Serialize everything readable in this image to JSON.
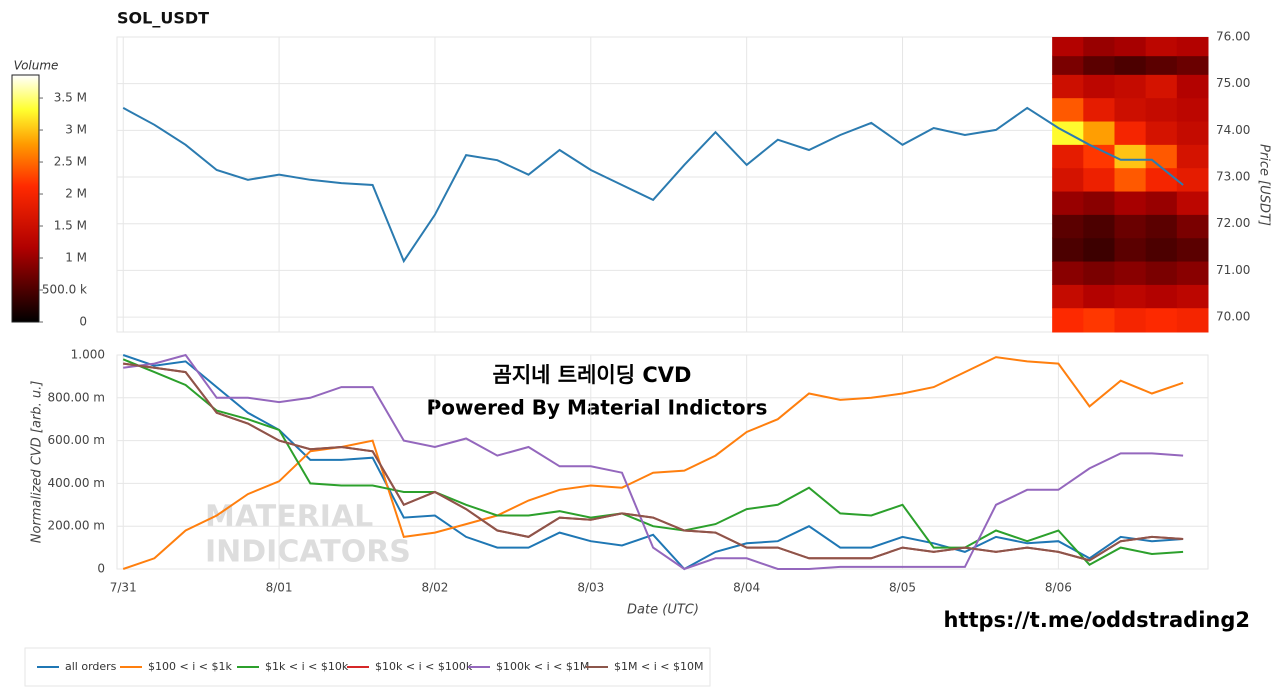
{
  "title": "SOL_USDT",
  "overlay": {
    "heading": "곰지네 트레이딩 CVD",
    "subheading": "Powered By Material Indictors",
    "link": "https://t.me/oddstrading2",
    "watermark": [
      "MATERIAL",
      "INDICATORS"
    ]
  },
  "chart_data": [
    {
      "type": "line",
      "y_label": "Price [USDT]",
      "y_axis_position": "right",
      "grid": true,
      "xlim": [
        -0.04,
        6.96
      ],
      "xticks": [
        {
          "value": 0,
          "label": "7/31"
        },
        {
          "value": 1,
          "label": "8/01"
        },
        {
          "value": 2,
          "label": "8/02"
        },
        {
          "value": 3,
          "label": "8/03"
        },
        {
          "value": 4,
          "label": "8/04"
        },
        {
          "value": 5,
          "label": "8/05"
        },
        {
          "value": 6,
          "label": "8/06"
        }
      ],
      "ylim": [
        69.68,
        76.0
      ],
      "yticks": [
        {
          "value": 70,
          "label": "70.00"
        },
        {
          "value": 71,
          "label": "71.00"
        },
        {
          "value": 72,
          "label": "72.00"
        },
        {
          "value": 73,
          "label": "73.00"
        },
        {
          "value": 74,
          "label": "74.00"
        },
        {
          "value": 75,
          "label": "75.00"
        },
        {
          "value": 76,
          "label": "76.00"
        }
      ],
      "x": [
        0,
        0.2,
        0.4,
        0.6,
        0.8,
        1.0,
        1.2,
        1.4,
        1.6,
        1.8,
        2.0,
        2.2,
        2.4,
        2.6,
        2.8,
        3.0,
        3.2,
        3.4,
        3.6,
        3.8,
        4.0,
        4.2,
        4.4,
        4.6,
        4.8,
        5.0,
        5.2,
        5.4,
        5.6,
        5.8,
        6.0,
        6.2,
        6.4,
        6.6,
        6.8
      ],
      "series": [
        {
          "name": "price",
          "color": "#2b7bb0",
          "values": [
            74.48,
            74.12,
            73.69,
            73.15,
            72.94,
            73.05,
            72.94,
            72.87,
            72.83,
            71.2,
            72.19,
            73.47,
            73.36,
            73.05,
            73.58,
            73.15,
            72.83,
            72.51,
            73.26,
            73.96,
            73.26,
            73.8,
            73.58,
            73.9,
            74.16,
            73.69,
            74.05,
            73.9,
            74.01,
            74.48,
            74.05,
            73.69,
            73.37,
            73.37,
            72.83
          ]
        }
      ],
      "heatmap": {
        "colorbar_title": "Volume",
        "colorbar_lim": [
          0,
          3.86
        ],
        "colorbar_ticks": [
          0,
          {
            "value": 0.5,
            "label": "500.0 k"
          },
          {
            "value": 1,
            "label": "1 M"
          },
          {
            "value": 1.5,
            "label": "1.5 M"
          },
          {
            "value": 2,
            "label": "2 M"
          },
          {
            "value": 2.5,
            "label": "2.5 M"
          },
          {
            "value": 3,
            "label": "3 M"
          },
          {
            "value": 3.5,
            "label": "3.5 M"
          }
        ],
        "xbins": [
          5.96,
          6.16,
          6.36,
          6.56,
          6.76,
          6.96
        ],
        "ybins": [
          69.68,
          70.2,
          70.7,
          71.2,
          71.7,
          72.2,
          72.7,
          73.2,
          73.7,
          74.2,
          74.7,
          75.2,
          75.6,
          76.0
        ],
        "values": [
          [
            2.1,
            2.2,
            2.0,
            2.1,
            2.0
          ],
          [
            1.4,
            1.2,
            1.3,
            1.2,
            1.3
          ],
          [
            0.9,
            0.8,
            0.9,
            0.8,
            0.9
          ],
          [
            0.5,
            0.4,
            0.6,
            0.5,
            0.6
          ],
          [
            0.6,
            0.5,
            0.7,
            0.6,
            0.8
          ],
          [
            1.0,
            0.9,
            1.1,
            1.0,
            1.3
          ],
          [
            1.6,
            1.9,
            2.4,
            2.0,
            1.8
          ],
          [
            1.8,
            2.2,
            3.0,
            2.4,
            1.6
          ],
          [
            3.3,
            2.8,
            2.0,
            1.6,
            1.4
          ],
          [
            2.4,
            1.8,
            1.5,
            1.4,
            1.3
          ],
          [
            1.5,
            1.3,
            1.4,
            1.6,
            1.2
          ],
          [
            0.8,
            0.6,
            0.5,
            0.6,
            0.7
          ],
          [
            1.2,
            1.0,
            1.1,
            1.3,
            1.2
          ]
        ]
      }
    },
    {
      "type": "line",
      "x_label": "Date (UTC)",
      "y_label": "Normalized CVD [arb. u.]",
      "y_axis_position": "left",
      "grid": true,
      "legend": "bottom",
      "xlim": [
        -0.04,
        6.96
      ],
      "xticks": [
        {
          "value": 0,
          "label": "7/31"
        },
        {
          "value": 1,
          "label": "8/01"
        },
        {
          "value": 2,
          "label": "8/02"
        },
        {
          "value": 3,
          "label": "8/03"
        },
        {
          "value": 4,
          "label": "8/04"
        },
        {
          "value": 5,
          "label": "8/05"
        },
        {
          "value": 6,
          "label": "8/06"
        }
      ],
      "ylim": [
        0,
        1.0
      ],
      "yticks": [
        0,
        {
          "value": 0.2,
          "label": "200.00 m"
        },
        {
          "value": 0.4,
          "label": "400.00 m"
        },
        {
          "value": 0.6,
          "label": "600.00 m"
        },
        {
          "value": 0.8,
          "label": "800.00 m"
        },
        {
          "value": 1.0,
          "label": "1.000"
        }
      ],
      "x": [
        0,
        0.2,
        0.4,
        0.6,
        0.8,
        1.0,
        1.2,
        1.4,
        1.6,
        1.8,
        2.0,
        2.2,
        2.4,
        2.6,
        2.8,
        3.0,
        3.2,
        3.4,
        3.6,
        3.8,
        4.0,
        4.2,
        4.4,
        4.6,
        4.8,
        5.0,
        5.2,
        5.4,
        5.6,
        5.8,
        6.0,
        6.2,
        6.4,
        6.6,
        6.8
      ],
      "series": [
        {
          "name": "all orders",
          "color": "#1f77b4",
          "values": [
            1.0,
            0.95,
            0.97,
            0.85,
            0.73,
            0.65,
            0.51,
            0.51,
            0.52,
            0.24,
            0.25,
            0.15,
            0.1,
            0.1,
            0.17,
            0.13,
            0.11,
            0.16,
            0.0,
            0.08,
            0.12,
            0.13,
            0.2,
            0.1,
            0.1,
            0.15,
            0.12,
            0.08,
            0.15,
            0.12,
            0.13,
            0.05,
            0.15,
            0.13,
            0.14
          ]
        },
        {
          "name": "$100 < i < $1k",
          "color": "#ff7f0e",
          "values": [
            0.0,
            0.05,
            0.18,
            0.25,
            0.35,
            0.41,
            0.55,
            0.57,
            0.6,
            0.15,
            0.17,
            0.21,
            0.25,
            0.32,
            0.37,
            0.39,
            0.38,
            0.45,
            0.46,
            0.53,
            0.64,
            0.7,
            0.82,
            0.79,
            0.8,
            0.82,
            0.85,
            0.92,
            0.99,
            0.97,
            0.96,
            0.76,
            0.88,
            0.82,
            0.87
          ]
        },
        {
          "name": "$1k < i < $10k",
          "color": "#2ca02c",
          "values": [
            0.98,
            0.92,
            0.86,
            0.74,
            0.7,
            0.65,
            0.4,
            0.39,
            0.39,
            0.36,
            0.36,
            0.3,
            0.25,
            0.25,
            0.27,
            0.24,
            0.26,
            0.2,
            0.18,
            0.21,
            0.28,
            0.3,
            0.38,
            0.26,
            0.25,
            0.3,
            0.1,
            0.1,
            0.18,
            0.13,
            0.18,
            0.02,
            0.1,
            0.07,
            0.08
          ]
        },
        {
          "name": "$10k < i < $100k",
          "color": "#d62728",
          "values": [
            0.96,
            0.94,
            0.92,
            0.73,
            0.68,
            0.6,
            0.56,
            0.57,
            0.55,
            0.3,
            0.36,
            0.28,
            0.18,
            0.15,
            0.24,
            0.23,
            0.26,
            0.24,
            0.18,
            0.17,
            0.1,
            0.1,
            0.05,
            0.05,
            0.05,
            0.1,
            0.08,
            0.1,
            0.08,
            0.1,
            0.08,
            0.04,
            0.13,
            0.15,
            0.14
          ]
        },
        {
          "name": "$100k < i < $1M",
          "color": "#9467bd",
          "values": [
            0.94,
            0.96,
            1.0,
            0.8,
            0.8,
            0.78,
            0.8,
            0.85,
            0.85,
            0.6,
            0.57,
            0.61,
            0.53,
            0.57,
            0.48,
            0.48,
            0.45,
            0.1,
            0.0,
            0.05,
            0.05,
            0.0,
            0.0,
            0.01,
            0.01,
            0.01,
            0.01,
            0.01,
            0.3,
            0.37,
            0.37,
            0.47,
            0.54,
            0.54,
            0.53
          ]
        },
        {
          "name": "$1M < i < $10M",
          "color": "#8c564b",
          "values": [
            0.96,
            0.94,
            0.92,
            0.73,
            0.68,
            0.6,
            0.56,
            0.57,
            0.55,
            0.3,
            0.36,
            0.28,
            0.18,
            0.15,
            0.24,
            0.23,
            0.26,
            0.24,
            0.18,
            0.17,
            0.1,
            0.1,
            0.05,
            0.05,
            0.05,
            0.1,
            0.08,
            0.1,
            0.08,
            0.1,
            0.08,
            0.04,
            0.13,
            0.15,
            0.14
          ]
        }
      ]
    }
  ]
}
